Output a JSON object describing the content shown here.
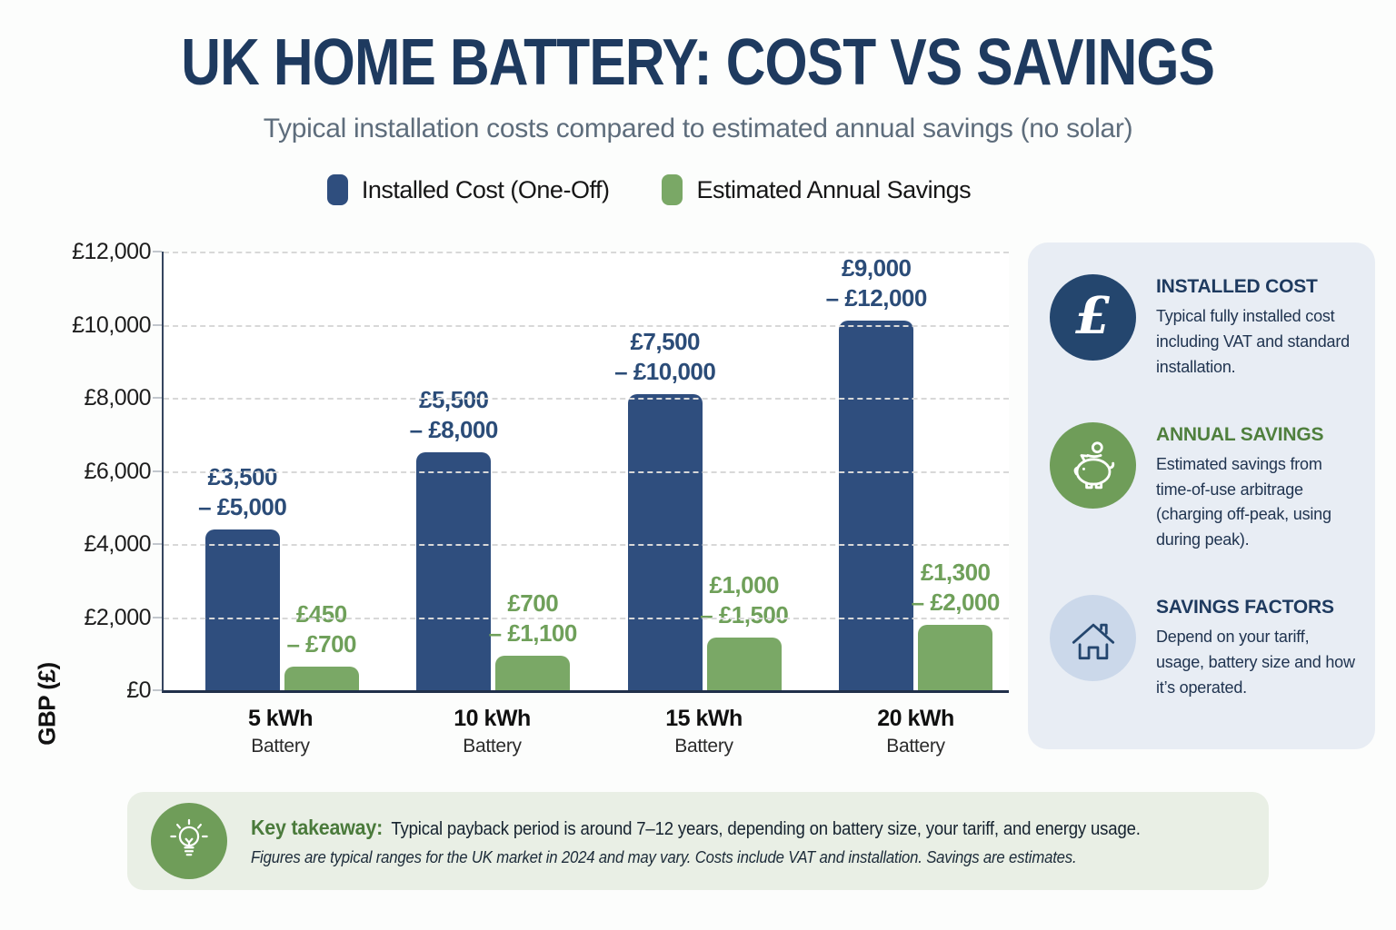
{
  "title": "UK HOME BATTERY: COST VS SAVINGS",
  "subtitle": "Typical installation costs compared to estimated annual savings (no solar)",
  "legend": [
    {
      "label": "Installed Cost (One-Off)",
      "color": "#2F4E7E"
    },
    {
      "label": "Estimated Annual Savings",
      "color": "#7AA866"
    }
  ],
  "chart_data": {
    "type": "bar",
    "title": "UK Home Battery: Cost vs Savings",
    "xlabel": "",
    "ylabel": "GBP (£)",
    "ylim": [
      0,
      12000
    ],
    "grid": "horizontal-dashed",
    "legend_position": "top",
    "yticks": [
      {
        "label": "£0",
        "value": 0
      },
      {
        "label": "£2,000",
        "value": 2000
      },
      {
        "label": "£4,000",
        "value": 4000
      },
      {
        "label": "£6,000",
        "value": 6000
      },
      {
        "label": "£8,000",
        "value": 8000
      },
      {
        "label": "£10,000",
        "value": 10000
      },
      {
        "label": "£12,000",
        "value": 12000
      }
    ],
    "categories": [
      {
        "label": "5 kWh",
        "sub": "Battery"
      },
      {
        "label": "10 kWh",
        "sub": "Battery"
      },
      {
        "label": "15 kWh",
        "sub": "Battery"
      },
      {
        "label": "20 kWh",
        "sub": "Battery"
      }
    ],
    "series": [
      {
        "name": "Installed Cost (One-Off)",
        "color": "#2F4E7E",
        "label_color": "#2B4C78",
        "values": [
          4400,
          6500,
          8100,
          10100
        ],
        "range_labels": [
          [
            "£3,500",
            "– £5,000"
          ],
          [
            "£5,500",
            "– £8,000"
          ],
          [
            "£7,500",
            "– £10,000"
          ],
          [
            "£9,000",
            "– £12,000"
          ]
        ]
      },
      {
        "name": "Estimated Annual Savings",
        "color": "#7AA866",
        "label_color": "#6FA05A",
        "values": [
          650,
          950,
          1450,
          1800
        ],
        "range_labels": [
          [
            "£450",
            "– £700"
          ],
          [
            "£700",
            "– £1,100"
          ],
          [
            "£1,000",
            "– £1,500"
          ],
          [
            "£1,300",
            "– £2,000"
          ]
        ]
      }
    ]
  },
  "sidebar": {
    "items": [
      {
        "icon": "pound-icon",
        "glyph": "£",
        "circle_color": "#24466E",
        "heading": "INSTALLED COST",
        "heading_color": "#1E3A5F",
        "body": "Typical fully installed cost including VAT and standard installation."
      },
      {
        "icon": "piggy-bank-icon",
        "circle_color": "#6F9D59",
        "heading": "ANNUAL SAVINGS",
        "heading_color": "#4F7F3D",
        "body": "Estimated savings from time-of-use arbitrage (charging off-peak, using during peak)."
      },
      {
        "icon": "house-icon",
        "circle_color": "#CBD8EA",
        "heading": "SAVINGS FACTORS",
        "heading_color": "#1E3A5F",
        "body": "Depend on your tariff, usage, battery size and how it’s operated."
      }
    ]
  },
  "footer": {
    "icon": "lightbulb-icon",
    "circle_color": "#6F9D59",
    "takeaway_label": "Key takeaway:",
    "takeaway_text": "Typical payback period is around 7–12 years, depending on battery size, your tariff, and energy usage.",
    "note": "Figures are typical ranges for the UK market in 2024 and may vary. Costs include VAT and installation. Savings are estimates."
  }
}
